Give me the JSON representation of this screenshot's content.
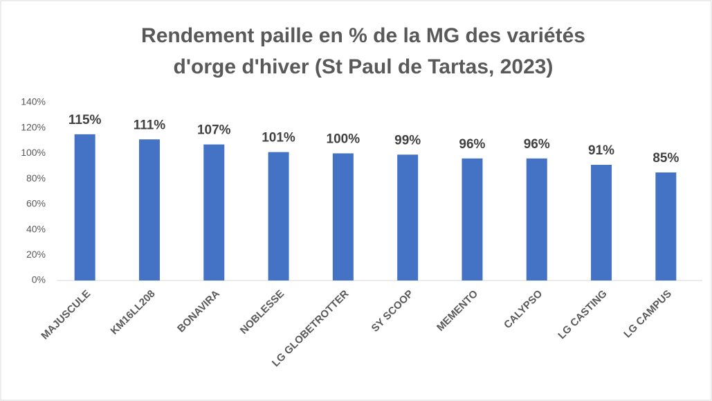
{
  "chart_data": {
    "type": "bar",
    "title": [
      "Rendement paille en % de la MG des variétés",
      "d'orge d'hiver (St Paul de Tartas, 2023)"
    ],
    "categories": [
      "MAJUSCULE",
      "KM16LL208",
      "BONAVIRA",
      "NOBLESSE",
      "LG GLOBETROTTER",
      "SY SCOOP",
      "MEMENTO",
      "CALYPSO",
      "LG CASTING",
      "LG CAMPUS"
    ],
    "values": [
      115,
      111,
      107,
      101,
      100,
      99,
      96,
      96,
      91,
      85
    ],
    "value_labels": [
      "115%",
      "111%",
      "107%",
      "101%",
      "100%",
      "99%",
      "96%",
      "96%",
      "91%",
      "85%"
    ],
    "color": "#4472c4",
    "ylim": [
      0,
      140
    ],
    "yticks": [
      {
        "value": 0,
        "label": "0%"
      },
      {
        "value": 20,
        "label": "20%"
      },
      {
        "value": 40,
        "label": "40%"
      },
      {
        "value": 60,
        "label": "60%"
      },
      {
        "value": 80,
        "label": "80%"
      },
      {
        "value": 100,
        "label": "100%"
      },
      {
        "value": 120,
        "label": "120%"
      },
      {
        "value": 140,
        "label": "140%"
      }
    ],
    "grid": false
  }
}
